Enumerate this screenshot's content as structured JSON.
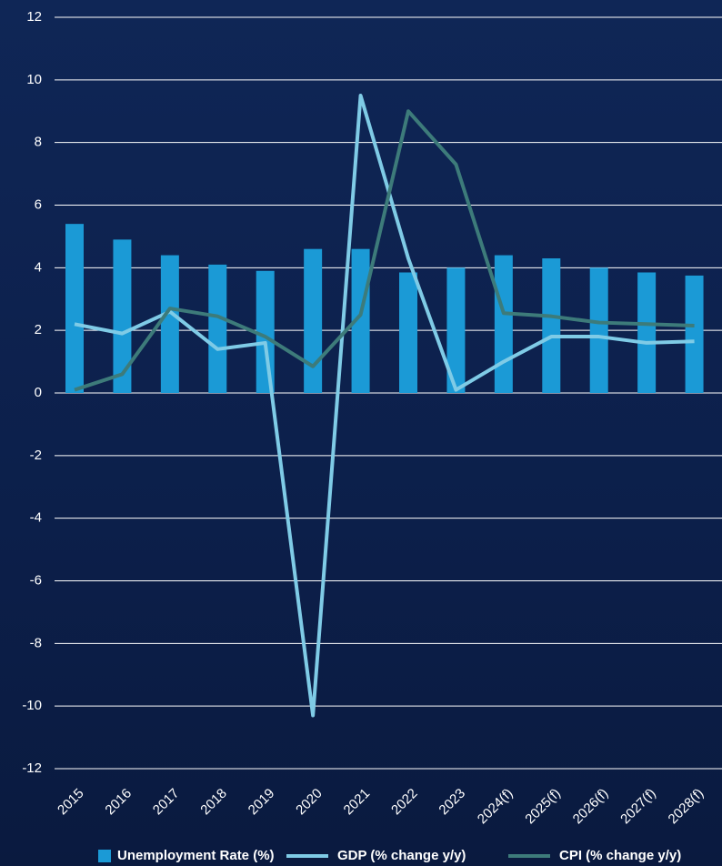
{
  "chart_data": {
    "type": "bar",
    "categories": [
      "2015",
      "2016",
      "2017",
      "2018",
      "2019",
      "2020",
      "2021",
      "2022",
      "2023",
      "2024(f)",
      "2025(f)",
      "2026(f)",
      "2027(f)",
      "2028(f)"
    ],
    "series": [
      {
        "name": "Unemployment Rate (%)",
        "type": "bar",
        "color": "#1b9ad6",
        "values": [
          5.4,
          4.9,
          4.4,
          4.1,
          3.9,
          4.6,
          4.6,
          3.85,
          4.0,
          4.4,
          4.3,
          4.0,
          3.85,
          3.75
        ]
      },
      {
        "name": "GDP (% change y/y)",
        "type": "line",
        "color": "#7fcbe6",
        "values": [
          2.2,
          1.9,
          2.6,
          1.4,
          1.6,
          -10.3,
          9.5,
          4.3,
          0.1,
          1.0,
          1.8,
          1.8,
          1.6,
          1.65
        ]
      },
      {
        "name": "CPI (% change y/y)",
        "type": "line",
        "color": "#3d7b7a",
        "values": [
          0.1,
          0.6,
          2.7,
          2.45,
          1.8,
          0.85,
          2.5,
          9.0,
          7.3,
          2.55,
          2.45,
          2.25,
          2.2,
          2.15
        ]
      }
    ],
    "ylim": [
      -12,
      12
    ],
    "yticks": [
      -12,
      -10,
      -8,
      -6,
      -4,
      -2,
      0,
      2,
      4,
      6,
      8,
      10,
      12
    ],
    "grid": true
  }
}
